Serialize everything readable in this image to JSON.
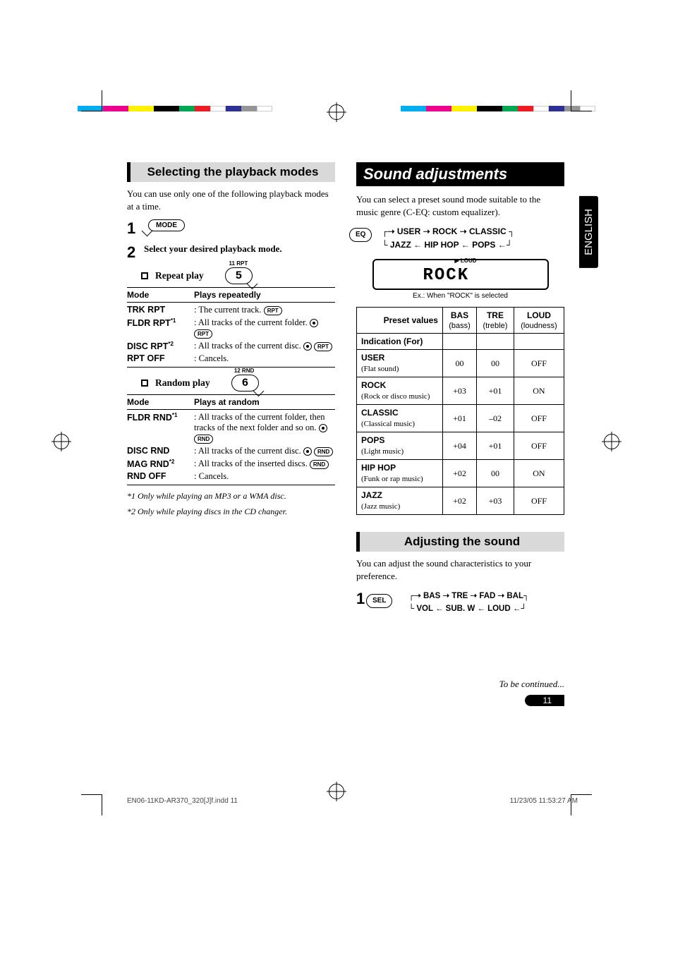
{
  "language_tab": "ENGLISH",
  "crop_bar_colors": [
    "#00aeef",
    "#ec008c",
    "#fff200",
    "#000000",
    "#00a651",
    "#ed1c24",
    "#ffffff",
    "#2e3192",
    "#939598",
    "#ffffff"
  ],
  "left": {
    "section_heading": "Selecting the playback modes",
    "intro": "You can use only one of the following playback modes at a time.",
    "step1_num": "1",
    "mode_button": "MODE",
    "step2_num": "2",
    "step2_text": "Select your desired playback mode.",
    "repeat": {
      "title": "Repeat play",
      "lcd_label": "11  RPT",
      "lcd_value": "5",
      "col1": "Mode",
      "col2": "Plays repeatedly",
      "rows": [
        {
          "mode": "TRK RPT",
          "sup": "",
          "desc": ":  The current track.",
          "pills": [
            "RPT"
          ]
        },
        {
          "mode": "FLDR RPT",
          "sup": "*1",
          "desc": ":  All tracks of the current folder.",
          "pills": [
            "RPT"
          ],
          "disc": true
        },
        {
          "mode": "DISC RPT",
          "sup": "*2",
          "desc": ":  All tracks of the current disc.",
          "pills": [
            "RPT"
          ],
          "disc": true
        },
        {
          "mode": "RPT OFF",
          "sup": "",
          "desc": ":  Cancels.",
          "pills": []
        }
      ]
    },
    "random": {
      "title": "Random play",
      "lcd_label": "12  RND",
      "lcd_value": "6",
      "col1": "Mode",
      "col2": "Plays at random",
      "rows": [
        {
          "mode": "FLDR RND",
          "sup": "*1",
          "desc": ":  All tracks of the current folder, then tracks of the next folder and so on.",
          "pills": [
            "RND"
          ],
          "disc": true
        },
        {
          "mode": "DISC RND",
          "sup": "",
          "desc": ":  All tracks of the current disc.",
          "pills": [
            "RND"
          ],
          "disc": true
        },
        {
          "mode": "MAG RND",
          "sup": "*2",
          "desc": ":  All tracks of the inserted discs.",
          "pills": [
            "RND"
          ]
        },
        {
          "mode": "RND OFF",
          "sup": "",
          "desc": ":  Cancels.",
          "pills": []
        }
      ]
    },
    "footnotes": [
      {
        "marker": "*1",
        "text": "Only while playing an MP3 or a WMA disc."
      },
      {
        "marker": "*2",
        "text": "Only while playing discs in the CD changer."
      }
    ]
  },
  "right": {
    "panel_title": "Sound adjustments",
    "intro": "You can select a preset sound mode suitable to the music genre (C-EQ: custom equalizer).",
    "eq_button": "EQ",
    "eq_flow_top": "USER ➝ ROCK ➝ CLASSIC",
    "eq_flow_bottom": "JAZZ ← HIP HOP ← POPS ←",
    "display_loud": "▶ LOUD",
    "display_text": "ROCK",
    "display_caption": "Ex.: When \"ROCK\" is selected",
    "table": {
      "h_preset": "Preset values",
      "h_indication": "Indication (For)",
      "h_bas": "BAS",
      "h_bas_sub": "(bass)",
      "h_tre": "TRE",
      "h_tre_sub": "(treble)",
      "h_loud": "LOUD",
      "h_loud_sub": "(loudness)",
      "rows": [
        {
          "name": "USER",
          "for": "(Flat sound)",
          "bas": "00",
          "tre": "00",
          "loud": "OFF"
        },
        {
          "name": "ROCK",
          "for": "(Rock or disco music)",
          "bas": "+03",
          "tre": "+01",
          "loud": "ON"
        },
        {
          "name": "CLASSIC",
          "for": "(Classical music)",
          "bas": "+01",
          "tre": "–02",
          "loud": "OFF"
        },
        {
          "name": "POPS",
          "for": "(Light music)",
          "bas": "+04",
          "tre": "+01",
          "loud": "OFF"
        },
        {
          "name": "HIP HOP",
          "for": "(Funk or rap music)",
          "bas": "+02",
          "tre": "00",
          "loud": "ON"
        },
        {
          "name": "JAZZ",
          "for": "(Jazz music)",
          "bas": "+02",
          "tre": "+03",
          "loud": "OFF"
        }
      ]
    },
    "adjust_heading": "Adjusting the sound",
    "adjust_intro": "You can adjust the sound characteristics to your preference.",
    "adjust_step_num": "1",
    "sel_button": "SEL",
    "sel_flow_top": "BAS ➝ TRE ➝ FAD ➝ BAL",
    "sel_flow_bottom": "VOL ← SUB. W ← LOUD ←",
    "continued": "To be continued...",
    "page_num": "11"
  },
  "footer": {
    "left": "EN06-11KD-AR370_320[J]f.indd   11",
    "right": "11/23/05   11:53:27 AM"
  }
}
